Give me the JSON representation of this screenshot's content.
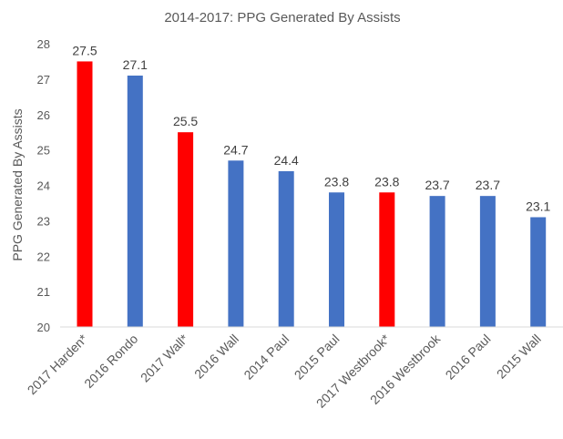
{
  "chart_data": {
    "type": "bar",
    "title": "2014-2017: PPG Generated By Assists",
    "xlabel": "",
    "ylabel": "PPG Generated By Assists",
    "ylim": [
      20,
      28
    ],
    "yticks": [
      "20",
      "21",
      "22",
      "23",
      "24",
      "25",
      "26",
      "27",
      "28"
    ],
    "grid": false,
    "categories": [
      "2017 Harden*",
      "2016 Rondo",
      "2017 Wall*",
      "2016 Wall",
      "2014 Paul",
      "2015 Paul",
      "2017 Westbrook*",
      "2016 Westbrook",
      "2016 Paul",
      "2015 Wall"
    ],
    "values": [
      27.5,
      27.1,
      25.5,
      24.7,
      24.4,
      23.8,
      23.8,
      23.7,
      23.7,
      23.1
    ],
    "data_labels": [
      "27.5",
      "27.1",
      "25.5",
      "24.7",
      "24.4",
      "23.8",
      "23.8",
      "23.7",
      "23.7",
      "23.1"
    ],
    "bar_colors": [
      "#FF0000",
      "#4472C4",
      "#FF0000",
      "#4472C4",
      "#4472C4",
      "#4472C4",
      "#FF0000",
      "#4472C4",
      "#4472C4",
      "#4472C4"
    ]
  }
}
